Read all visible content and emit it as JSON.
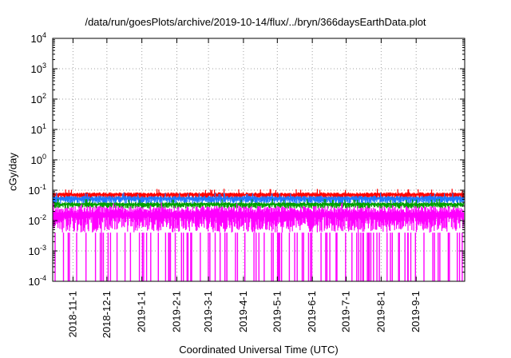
{
  "chart_data": {
    "type": "line",
    "title": "/data/run/goesPlots/archive/2019-10-14/flux/../bryn/366daysEarthData.plot",
    "xlabel": "Coordinated Universal Time (UTC)",
    "ylabel": "cGy/day",
    "y_scale": "log",
    "ylim": [
      0.0001,
      10000
    ],
    "y_ticks": [
      {
        "base": "10",
        "exp": "-4"
      },
      {
        "base": "10",
        "exp": "-3"
      },
      {
        "base": "10",
        "exp": "-2"
      },
      {
        "base": "10",
        "exp": "-1"
      },
      {
        "base": "10",
        "exp": "0"
      },
      {
        "base": "10",
        "exp": "1"
      },
      {
        "base": "10",
        "exp": "2"
      },
      {
        "base": "10",
        "exp": "3"
      },
      {
        "base": "10",
        "exp": "4"
      }
    ],
    "xlim": [
      "2018-10-14",
      "2019-10-14"
    ],
    "x_tick_labels": [
      "2018-11-1",
      "2018-12-1",
      "2019-1-1",
      "2019-2-1",
      "2019-3-1",
      "2019-4-1",
      "2019-5-1",
      "2019-6-1",
      "2019-7-1",
      "2019-8-1",
      "2019-9-1"
    ],
    "grid": true,
    "series": [
      {
        "color": "#ff0000",
        "typical_low": 0.05,
        "typical_high": 0.085
      },
      {
        "color": "#1e78ff",
        "typical_low": 0.035,
        "typical_high": 0.065
      },
      {
        "color": "#00a000",
        "typical_low": 0.025,
        "typical_high": 0.04
      },
      {
        "color": "#ff00ff",
        "typical_low": 0.004,
        "typical_high": 0.03,
        "dropouts_to": 0.0001
      }
    ]
  }
}
